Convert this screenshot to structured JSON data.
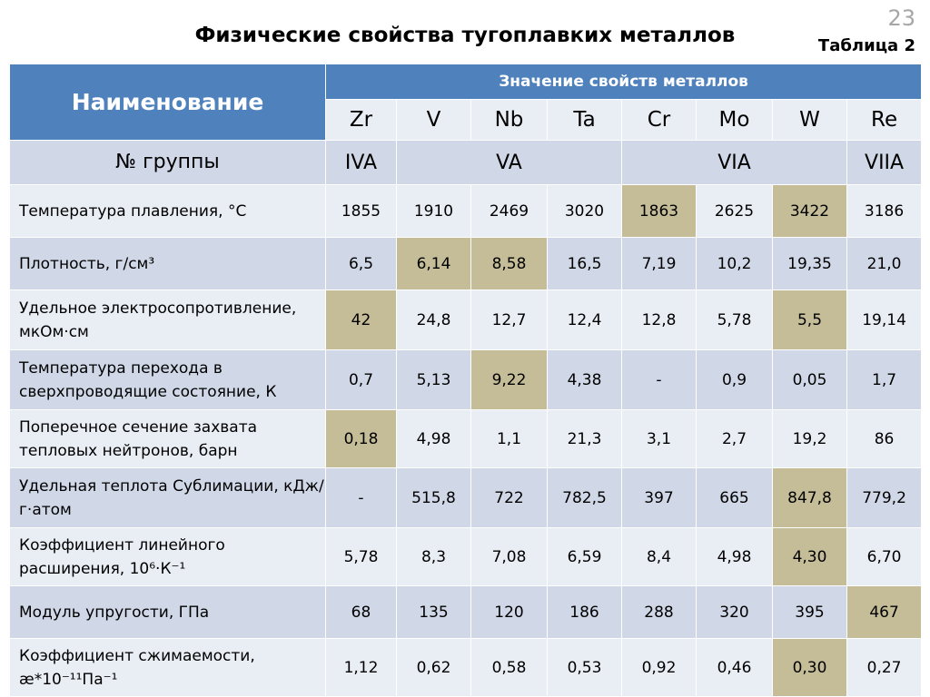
{
  "slide_number": "23",
  "title": "Физические свойства тугоплавких металлов",
  "table_label": "Таблица 2",
  "header": {
    "name_label": "Наименование",
    "values_label": "Значение свойств металлов"
  },
  "metals": [
    "Zr",
    "V",
    "Nb",
    "Ta",
    "Cr",
    "Mo",
    "W",
    "Re"
  ],
  "group_row": {
    "label": "№ группы",
    "groups": [
      "IVA",
      "VA",
      "VIA",
      "VIIA"
    ]
  },
  "rows": [
    {
      "label": "Температура плавления, °С",
      "values": [
        "1855",
        "1910",
        "2469",
        "3020",
        "1863",
        "2625",
        "3422",
        "3186"
      ]
    },
    {
      "label": "Плотность, г/см³",
      "values": [
        "6,5",
        "6,14",
        "8,58",
        "16,5",
        "7,19",
        "10,2",
        "19,35",
        "21,0"
      ]
    },
    {
      "label": "Удельное электросопротивление, мкОм·см",
      "values": [
        "42",
        "24,8",
        "12,7",
        "12,4",
        "12,8",
        "5,78",
        "5,5",
        "19,14"
      ]
    },
    {
      "label": "Температура перехода в сверхпроводящие состояние, К",
      "values": [
        "0,7",
        "5,13",
        "9,22",
        "4,38",
        "-",
        "0,9",
        "0,05",
        "1,7"
      ]
    },
    {
      "label": "Поперечное сечение захвата тепловых нейтронов, барн",
      "values": [
        "0,18",
        "4,98",
        "1,1",
        "21,3",
        "3,1",
        "2,7",
        "19,2",
        "86"
      ]
    },
    {
      "label": "Удельная теплота Сублимации, кДж/г·атом",
      "values": [
        "-",
        "515,8",
        "722",
        "782,5",
        "397",
        "665",
        "847,8",
        "779,2"
      ]
    },
    {
      "label": "Коэффициент линейного расширения, 10⁶·К⁻¹",
      "values": [
        "5,78",
        "8,3",
        "7,08",
        "6,59",
        "8,4",
        "4,98",
        "4,30",
        "6,70"
      ]
    },
    {
      "label": "Модуль упругости, ГПа",
      "values": [
        "68",
        "135",
        "120",
        "186",
        "288",
        "320",
        "395",
        "467"
      ]
    },
    {
      "label": "Коэффициент сжимаемости, æ*10⁻¹¹Па⁻¹",
      "values": [
        "1,12",
        "0,62",
        "0,58",
        "0,53",
        "0,92",
        "0,46",
        "0,30",
        "0,27"
      ]
    }
  ],
  "colors": {
    "header_blue": "#4f81bd",
    "row_dark": "#d0d8e8",
    "row_light": "#e9edf4",
    "highlight": "#c4bd97"
  }
}
